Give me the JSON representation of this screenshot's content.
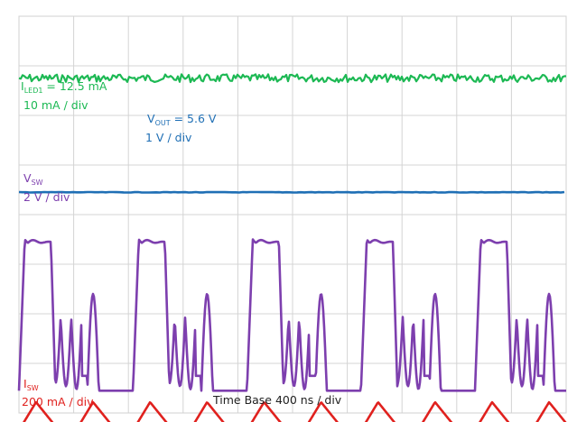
{
  "chart_data": {
    "type": "line",
    "grid": true,
    "divisions": {
      "x": 10,
      "y": 8
    },
    "timebase_label": "Time Base 400 ns / div",
    "channels": [
      {
        "id": "iled1",
        "color": "#1db954",
        "name_main": "I",
        "name_sub": "LED1",
        "value_text": " = 12.5 mA",
        "scale_text": "10 mA / div",
        "waveform": "dc-noisy",
        "level_div": 6.75,
        "noise_div": 0.08
      },
      {
        "id": "vout",
        "color": "#1f6fb5",
        "name_main": "V",
        "name_sub": "OUT",
        "value_text": " = 5.6 V",
        "scale_text": "1 V / div",
        "waveform": "dc",
        "level_div": 4.45
      },
      {
        "id": "vsw",
        "color": "#7d3fae",
        "name_main": "V",
        "name_sub": "SW",
        "value_text": "",
        "scale_text": "2 V / div",
        "waveform": "switching",
        "high_div": 3.45,
        "low_div": 0.45,
        "periods": 4.8
      },
      {
        "id": "isw",
        "color": "#e0211e",
        "name_main": "I",
        "name_sub": "SW",
        "value_text": "",
        "scale_text": "200 mA / div",
        "waveform": "triangle",
        "baseline_div": -0.35,
        "peak_div": 0.0,
        "periods": 9.6
      }
    ]
  }
}
